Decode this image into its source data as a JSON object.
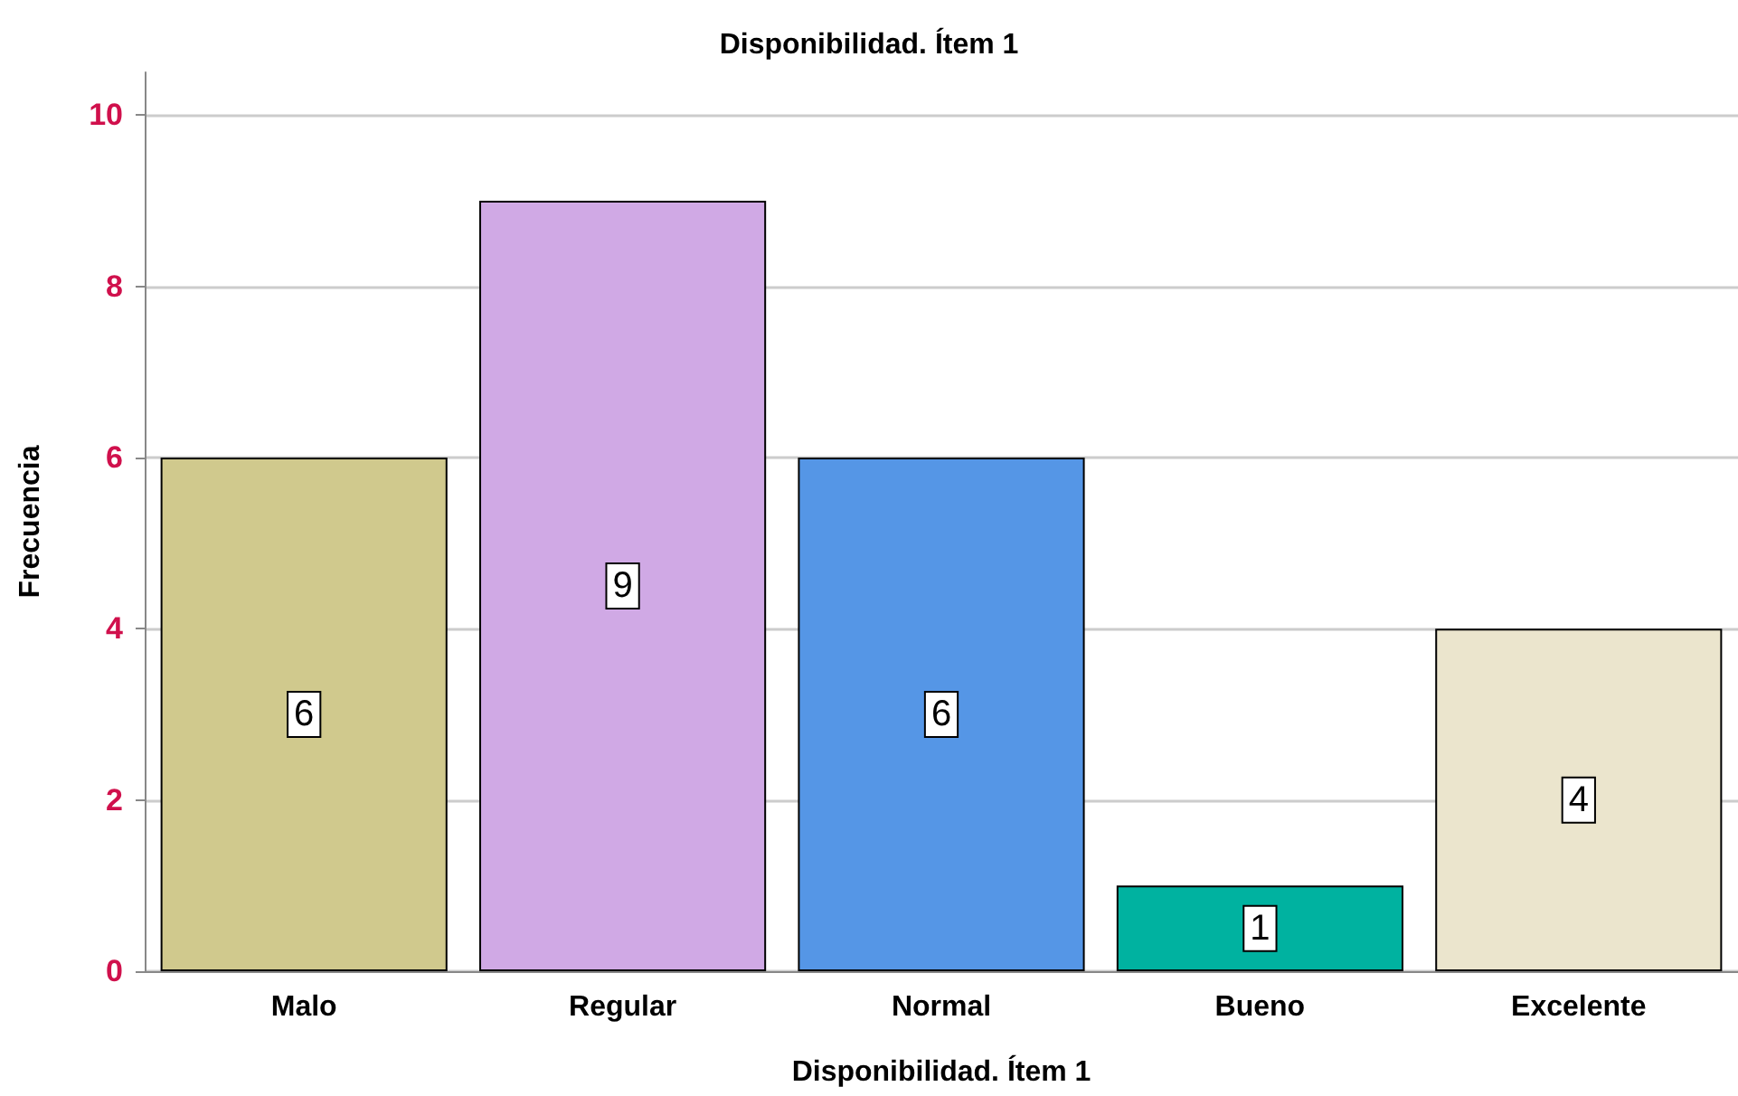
{
  "chart_data": {
    "type": "bar",
    "title": "Disponibilidad. Ítem 1",
    "xlabel": "Disponibilidad. Ítem 1",
    "ylabel": "Frecuencia",
    "categories": [
      "Malo",
      "Regular",
      "Normal",
      "Bueno",
      "Excelente"
    ],
    "values": [
      6,
      9,
      6,
      1,
      4
    ],
    "colors": [
      "#d0c98d",
      "#d0a9e5",
      "#5596e6",
      "#00b2a0",
      "#ebe5cd"
    ],
    "ylim": [
      0,
      10.5
    ],
    "yticks": [
      0,
      2,
      4,
      6,
      8,
      10
    ],
    "grid": "y",
    "data_labels": true
  }
}
